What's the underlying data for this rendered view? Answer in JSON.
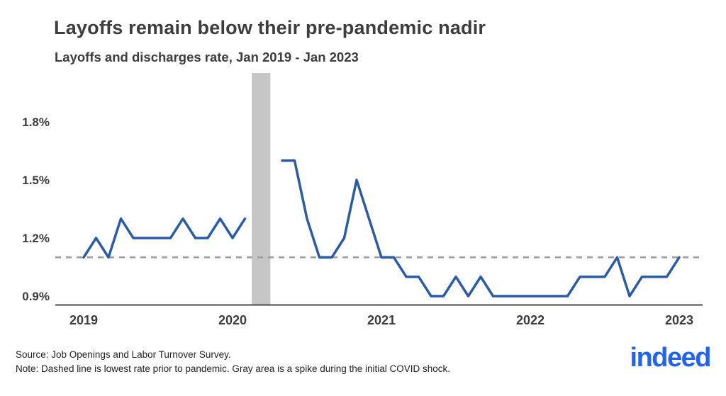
{
  "title": "Layoffs remain below their pre-pandemic nadir",
  "subtitle": "Layoffs and discharges rate, Jan 2019 - Jan 2023",
  "footer": {
    "source": "Source: Job Openings and Labor Turnover Survey.",
    "note": "Note: Dashed line is lowest rate prior to pandemic. Gray area is a spike during the initial COVID shock."
  },
  "logo": {
    "text": "indeed",
    "color": "#2164f3"
  },
  "colors": {
    "line": "#2a5ba9",
    "dashed": "#9c9c9c",
    "band": "#c6c6c6",
    "title_text": "#3d3d3d",
    "axis_label": "#3d3d3d",
    "axis_line": "#474747"
  },
  "chart_data": {
    "type": "line",
    "title": "Layoffs remain below their pre-pandemic nadir",
    "subtitle": "Layoffs and discharges rate, Jan 2019 - Jan 2023",
    "unit": "%",
    "grid": false,
    "legend": false,
    "ylim": [
      0.85,
      1.9
    ],
    "months": [
      "2019-01",
      "2019-02",
      "2019-03",
      "2019-04",
      "2019-05",
      "2019-06",
      "2019-07",
      "2019-08",
      "2019-09",
      "2019-10",
      "2019-11",
      "2019-12",
      "2020-01",
      "2020-02",
      "2020-03",
      "2020-04",
      "2020-05",
      "2020-06",
      "2020-07",
      "2020-08",
      "2020-09",
      "2020-10",
      "2020-11",
      "2020-12",
      "2021-01",
      "2021-02",
      "2021-03",
      "2021-04",
      "2021-05",
      "2021-06",
      "2021-07",
      "2021-08",
      "2021-09",
      "2021-10",
      "2021-11",
      "2021-12",
      "2022-01",
      "2022-02",
      "2022-03",
      "2022-04",
      "2022-05",
      "2022-06",
      "2022-07",
      "2022-08",
      "2022-09",
      "2022-10",
      "2022-11",
      "2022-12",
      "2023-01"
    ],
    "series": [
      {
        "name": "Layoffs and discharges rate",
        "color": "#2a5ba9",
        "values": [
          1.1,
          1.2,
          1.1,
          1.3,
          1.2,
          1.2,
          1.2,
          1.2,
          1.3,
          1.2,
          1.2,
          1.3,
          1.2,
          1.3,
          null,
          null,
          1.6,
          1.6,
          1.3,
          1.1,
          1.1,
          1.2,
          1.5,
          1.3,
          1.1,
          1.1,
          1.0,
          1.0,
          0.9,
          0.9,
          1.0,
          0.9,
          1.0,
          0.9,
          0.9,
          0.9,
          0.9,
          0.9,
          0.9,
          0.9,
          1.0,
          1.0,
          1.0,
          1.1,
          0.9,
          1.0,
          1.0,
          1.0,
          1.1
        ]
      }
    ],
    "reference_line": {
      "value": 1.1,
      "style": "dashed",
      "label": "lowest rate prior to pandemic"
    },
    "covid_band": {
      "from": "2020-03",
      "to": "2020-04",
      "label": "spike during the initial COVID shock"
    },
    "yticks": [
      {
        "value": 1.8,
        "label": "1.8%"
      },
      {
        "value": 1.5,
        "label": "1.5%"
      },
      {
        "value": 1.2,
        "label": "1.2%"
      },
      {
        "value": 0.9,
        "label": "0.9%"
      }
    ],
    "xticks": [
      {
        "label": "2019",
        "month_index": 0
      },
      {
        "label": "2020",
        "month_index": 12
      },
      {
        "label": "2021",
        "month_index": 24
      },
      {
        "label": "2022",
        "month_index": 36
      },
      {
        "label": "2023",
        "month_index": 48
      }
    ]
  }
}
